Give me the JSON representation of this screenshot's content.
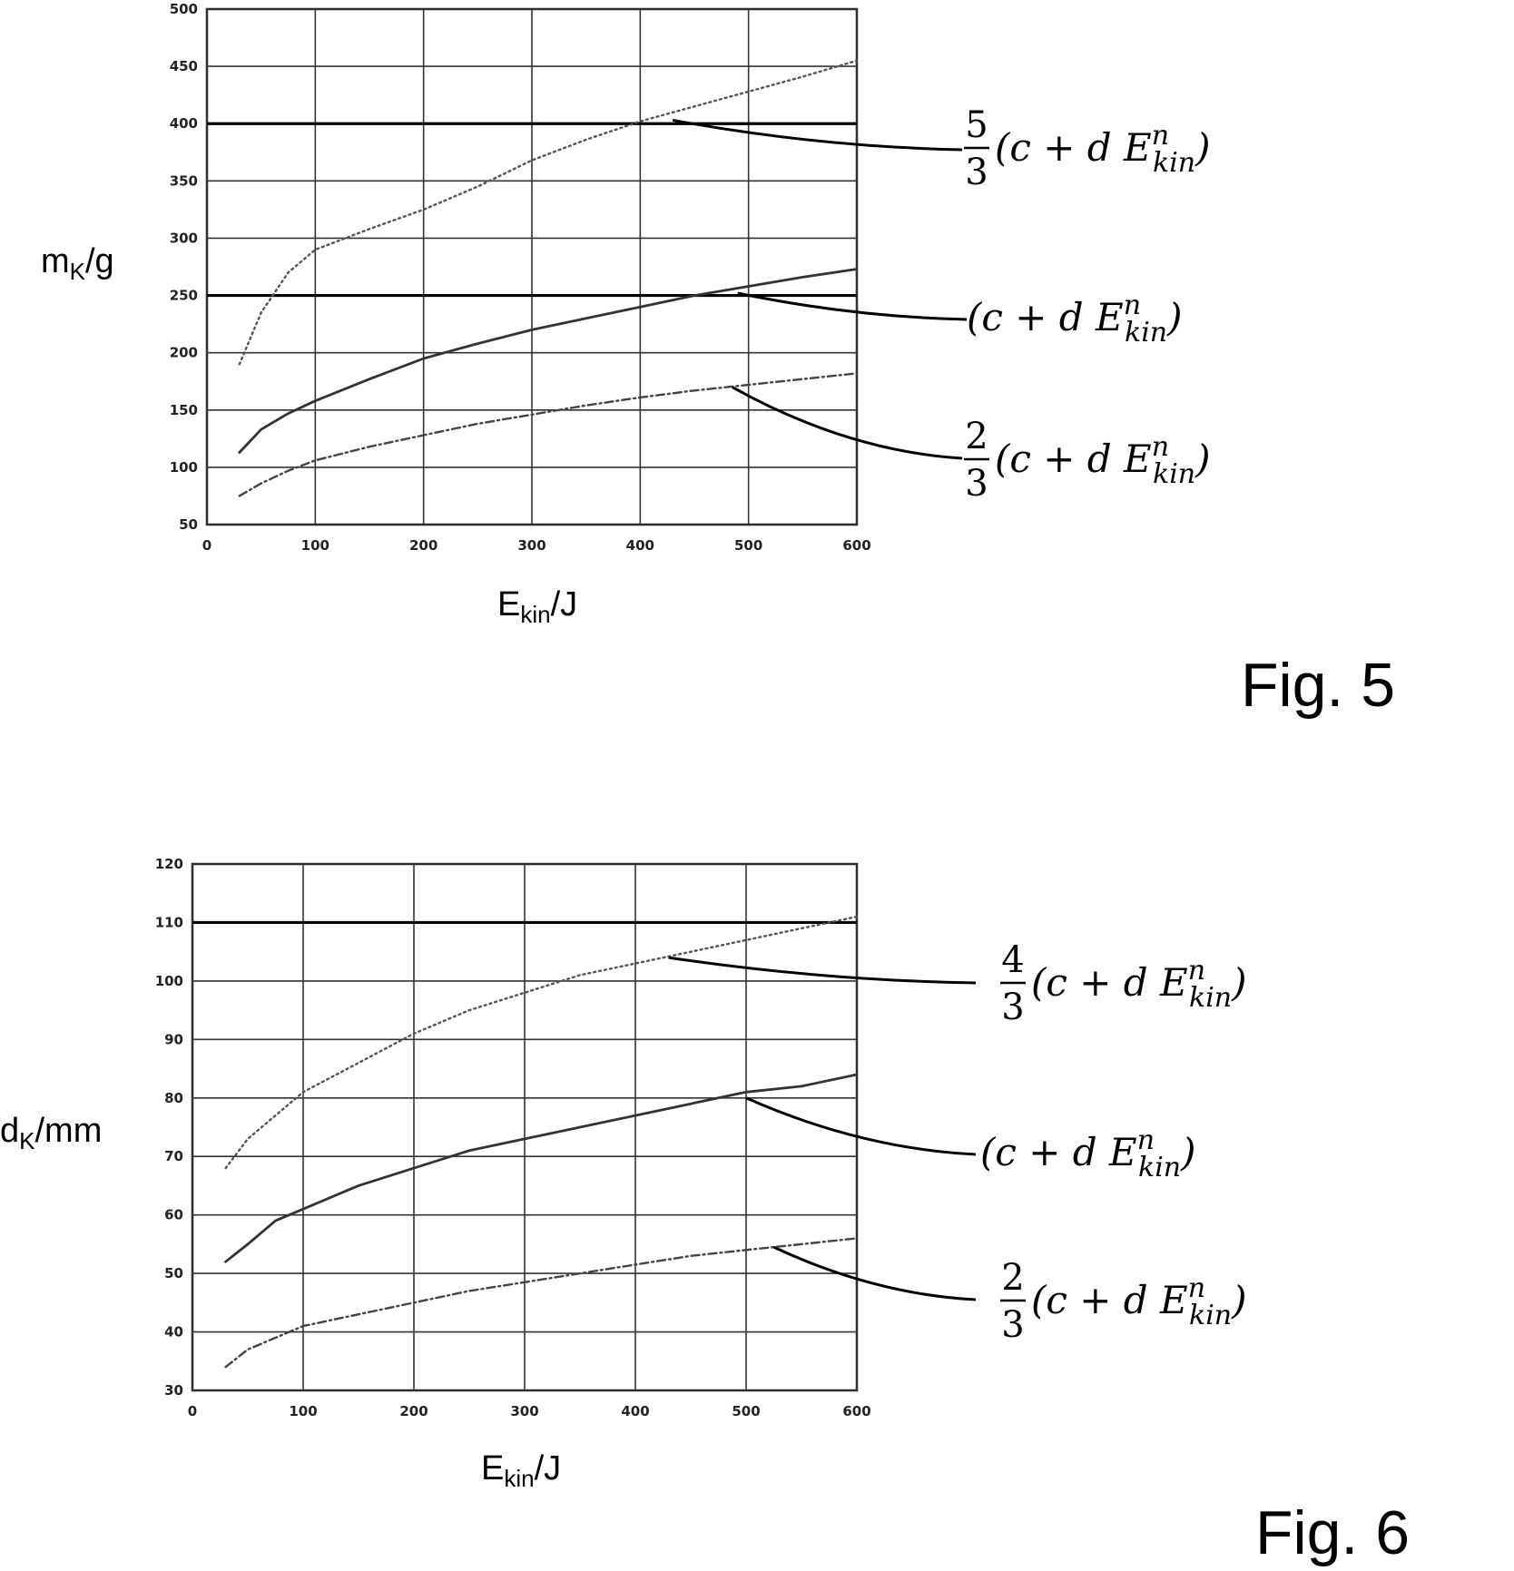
{
  "chart_data": [
    {
      "type": "line",
      "figure_label": "Fig. 5",
      "xlabel": "E",
      "xlabel_sub": "kin",
      "xlabel_unit": "/J",
      "ylabel": "m",
      "ylabel_sub": "K",
      "ylabel_unit": "/g",
      "xlim": [
        0,
        600
      ],
      "ylim": [
        50,
        500
      ],
      "xticks": [
        0,
        100,
        200,
        300,
        400,
        500,
        600
      ],
      "yticks": [
        50,
        100,
        150,
        200,
        250,
        300,
        350,
        400,
        450,
        500
      ],
      "grid": true,
      "hlines": [
        250,
        400
      ],
      "series": [
        {
          "style": "dotted",
          "x": [
            30,
            50,
            75,
            100,
            150,
            200,
            250,
            300,
            350,
            400,
            450,
            500,
            550,
            600
          ],
          "y": [
            190,
            235,
            270,
            290,
            308,
            325,
            345,
            368,
            386,
            402,
            415,
            428,
            441,
            455
          ]
        },
        {
          "style": "solid",
          "x": [
            30,
            50,
            75,
            100,
            150,
            200,
            250,
            300,
            350,
            400,
            450,
            500,
            550,
            600
          ],
          "y": [
            113,
            133,
            147,
            158,
            177,
            195,
            208,
            220,
            230,
            240,
            250,
            258,
            266,
            273
          ]
        },
        {
          "style": "dash-dot",
          "x": [
            30,
            50,
            75,
            100,
            150,
            200,
            250,
            300,
            350,
            400,
            450,
            500,
            550,
            600
          ],
          "y": [
            75,
            86,
            97,
            106,
            118,
            128,
            138,
            146,
            154,
            161,
            167,
            172,
            177,
            182
          ]
        }
      ],
      "annotations": [
        {
          "fraction": [
            "5",
            "3"
          ],
          "prefix": "(c + d E",
          "sup": "n",
          "sub": "kin",
          "suffix": ")"
        },
        {
          "fraction": null,
          "prefix": "(c + d E",
          "sup": "n",
          "sub": "kin",
          "suffix": ")"
        },
        {
          "fraction": [
            "2",
            "3"
          ],
          "prefix": "(c + d E",
          "sup": "n",
          "sub": "kin",
          "suffix": ")"
        }
      ]
    },
    {
      "type": "line",
      "figure_label": "Fig. 6",
      "xlabel": "E",
      "xlabel_sub": "kin",
      "xlabel_unit": "/J",
      "ylabel": "d",
      "ylabel_sub": "K",
      "ylabel_unit": "/mm",
      "xlim": [
        0,
        600
      ],
      "ylim": [
        30,
        120
      ],
      "xticks": [
        0,
        100,
        200,
        300,
        400,
        500,
        600
      ],
      "yticks": [
        30,
        40,
        50,
        60,
        70,
        80,
        90,
        100,
        110,
        120
      ],
      "grid": true,
      "hlines": [
        110
      ],
      "series": [
        {
          "style": "dotted",
          "x": [
            30,
            50,
            75,
            100,
            150,
            200,
            250,
            300,
            350,
            400,
            450,
            500,
            550,
            600
          ],
          "y": [
            68,
            73,
            77,
            81,
            86,
            91,
            95,
            98,
            101,
            103,
            105,
            107,
            109,
            111
          ]
        },
        {
          "style": "solid",
          "x": [
            30,
            50,
            75,
            100,
            150,
            200,
            250,
            300,
            350,
            400,
            450,
            500,
            550,
            600
          ],
          "y": [
            52,
            55,
            59,
            61,
            65,
            68,
            71,
            73,
            75,
            77,
            79,
            81,
            82,
            84
          ]
        },
        {
          "style": "dash-dot",
          "x": [
            30,
            50,
            75,
            100,
            150,
            200,
            250,
            300,
            350,
            400,
            450,
            500,
            550,
            600
          ],
          "y": [
            34,
            37,
            39,
            41,
            43,
            45,
            47,
            48.5,
            50,
            51.5,
            53,
            54,
            55,
            56
          ]
        }
      ],
      "annotations": [
        {
          "fraction": [
            "4",
            "3"
          ],
          "prefix": "(c + d E",
          "sup": "n",
          "sub": "kin",
          "suffix": ")"
        },
        {
          "fraction": null,
          "prefix": "(c + d E",
          "sup": "n",
          "sub": "kin",
          "suffix": ")"
        },
        {
          "fraction": [
            "2",
            "3"
          ],
          "prefix": "(c + d E",
          "sup": "n",
          "sub": "kin",
          "suffix": ")"
        }
      ]
    }
  ]
}
